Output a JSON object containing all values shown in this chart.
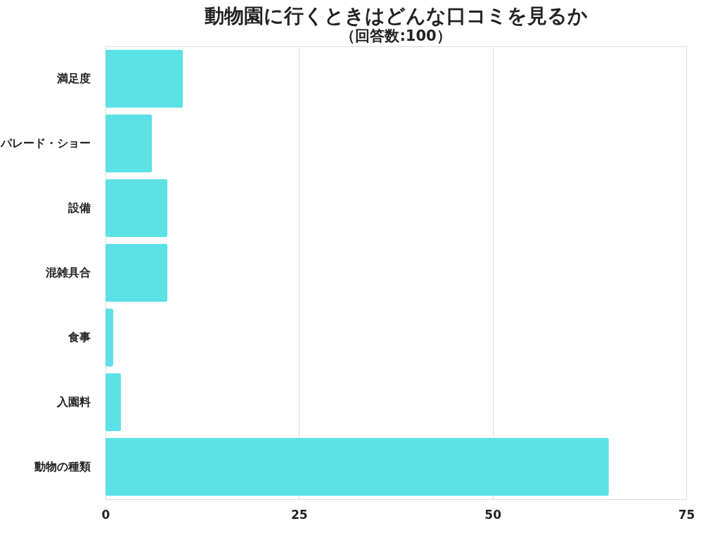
{
  "chart_data": {
    "type": "bar",
    "orientation": "horizontal",
    "title": "動物園に行くときはどんな口コミを見るか",
    "subtitle": "（回答数:100）",
    "categories": [
      "満足度",
      "パレード・ショー",
      "設備",
      "混雑具合",
      "食事",
      "入園料",
      "動物の種類"
    ],
    "values": [
      10,
      6,
      8,
      8,
      1,
      2,
      65
    ],
    "color": "#5ce1e6",
    "xlim": [
      0,
      75
    ],
    "xticks": [
      0,
      25,
      50,
      75
    ],
    "grid": "x"
  }
}
